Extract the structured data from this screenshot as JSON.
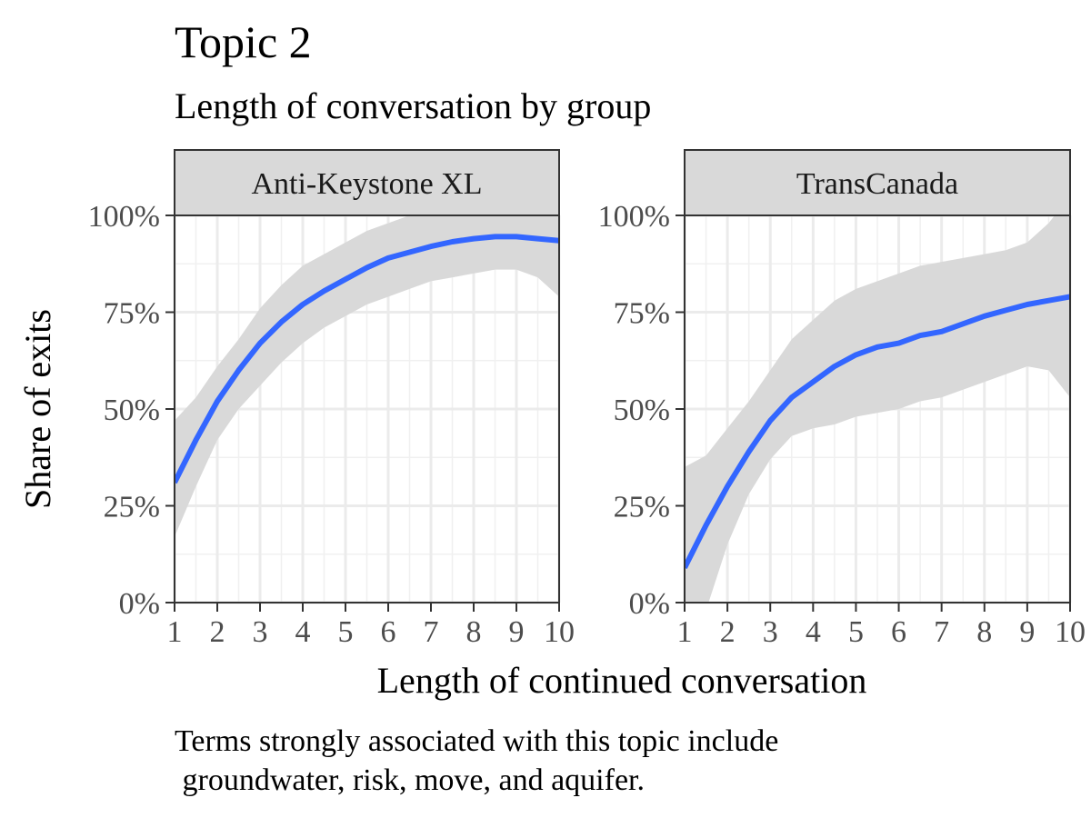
{
  "chart_data": {
    "type": "line",
    "title": "Topic 2",
    "subtitle": "Length of conversation by group",
    "xlabel": "Length of continued conversation",
    "ylabel": "Share of exits",
    "caption_lines": [
      "Terms strongly associated with this topic include",
      " groundwater, risk, move, and aquifer."
    ],
    "xlim": [
      1,
      10
    ],
    "ylim": [
      0,
      1
    ],
    "x_ticks": [
      1,
      2,
      3,
      4,
      5,
      6,
      7,
      8,
      9,
      10
    ],
    "y_ticks": [
      0,
      0.25,
      0.5,
      0.75,
      1.0
    ],
    "y_tick_labels": [
      "0%",
      "25%",
      "50%",
      "75%",
      "100%"
    ],
    "grid": true,
    "line_color": "#3366FF",
    "ribbon_color": "#D9D9D9",
    "strip_fill": "#D9D9D9",
    "panels": [
      {
        "name": "Anti-Keystone XL",
        "x": [
          1,
          1.5,
          2,
          2.5,
          3,
          3.5,
          4,
          4.5,
          5,
          5.5,
          6,
          6.5,
          7,
          7.5,
          8,
          8.5,
          9,
          9.5,
          10
        ],
        "y": [
          0.31,
          0.42,
          0.52,
          0.6,
          0.67,
          0.725,
          0.77,
          0.805,
          0.835,
          0.865,
          0.89,
          0.905,
          0.92,
          0.932,
          0.94,
          0.945,
          0.945,
          0.94,
          0.935
        ],
        "lower": [
          0.17,
          0.3,
          0.42,
          0.5,
          0.56,
          0.62,
          0.67,
          0.71,
          0.74,
          0.77,
          0.79,
          0.81,
          0.83,
          0.84,
          0.85,
          0.86,
          0.86,
          0.84,
          0.79
        ],
        "upper": [
          0.47,
          0.53,
          0.61,
          0.68,
          0.76,
          0.82,
          0.87,
          0.9,
          0.93,
          0.96,
          0.98,
          1.0,
          1.01,
          1.02,
          1.03,
          1.03,
          1.04,
          1.06,
          1.08
        ]
      },
      {
        "name": "TransCanada",
        "x": [
          1,
          1.5,
          2,
          2.5,
          3,
          3.5,
          4,
          4.5,
          5,
          5.5,
          6,
          6.5,
          7,
          7.5,
          8,
          8.5,
          9,
          9.5,
          10
        ],
        "y": [
          0.09,
          0.2,
          0.3,
          0.39,
          0.47,
          0.53,
          0.57,
          0.61,
          0.64,
          0.66,
          0.67,
          0.69,
          0.7,
          0.72,
          0.74,
          0.755,
          0.77,
          0.78,
          0.79
        ],
        "lower": [
          -0.18,
          -0.02,
          0.15,
          0.28,
          0.37,
          0.43,
          0.45,
          0.46,
          0.48,
          0.49,
          0.5,
          0.52,
          0.53,
          0.55,
          0.57,
          0.59,
          0.61,
          0.6,
          0.53
        ],
        "upper": [
          0.35,
          0.38,
          0.45,
          0.52,
          0.6,
          0.68,
          0.73,
          0.78,
          0.81,
          0.83,
          0.85,
          0.87,
          0.88,
          0.89,
          0.9,
          0.91,
          0.93,
          0.98,
          1.05
        ]
      }
    ]
  }
}
